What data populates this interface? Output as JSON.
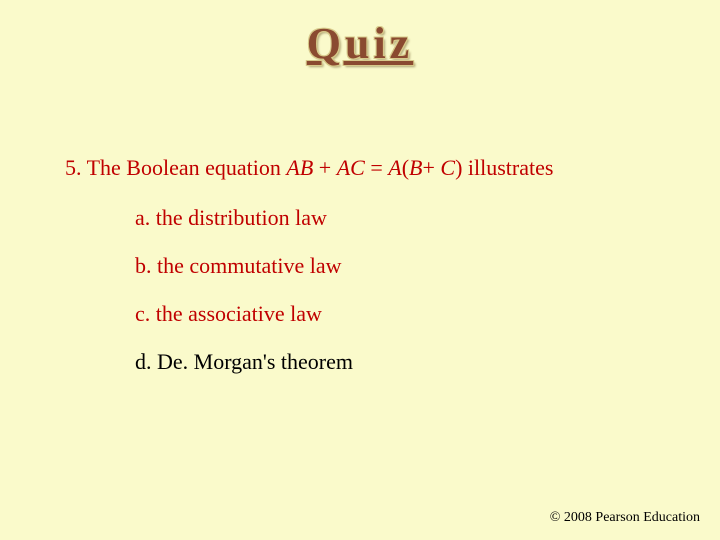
{
  "background_color": "#fafacb",
  "title": {
    "text": "Quiz",
    "fontsize": 44,
    "color": "#8a4a30",
    "outline_color": "#d7c98a",
    "letter_spacing": 4,
    "underline": true
  },
  "question": {
    "prefix": "5. The Boolean equation ",
    "eq1": "AB ",
    "plus1": "+ ",
    "eq2": "AC ",
    "equals": "= ",
    "eq3": "A",
    "paren_open": "(",
    "eq4": "B",
    "plus2": "+ ",
    "eq5": "C",
    "paren_close": ")",
    "suffix": " illustrates",
    "color": "#c00000",
    "fontsize": 22
  },
  "options": {
    "a": "a. the distribution law",
    "b": "b. the commutative law",
    "c": "c. the associative law",
    "d": "d. De. Morgan's theorem",
    "color": "#c00000",
    "d_color": "#000000",
    "fontsize": 22,
    "line_gap": 22
  },
  "copyright": "© 2008 Pearson Education"
}
